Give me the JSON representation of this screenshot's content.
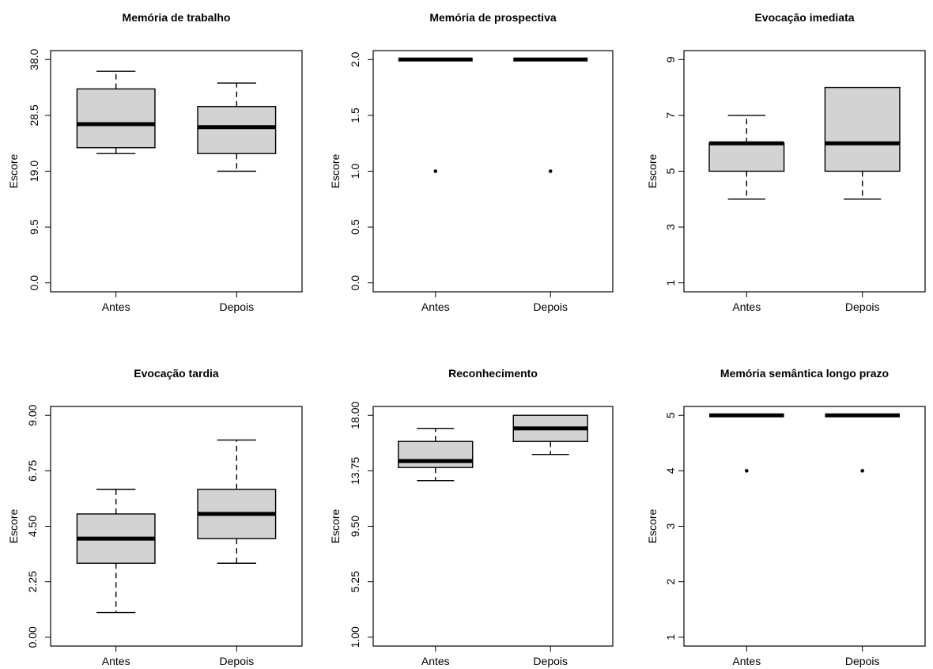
{
  "chart_data": [
    {
      "type": "box",
      "title": "Memória de trabalho",
      "ylabel": "Escore",
      "ylim": [
        0,
        38
      ],
      "yticks": [
        "0.0",
        "9.5",
        "19.0",
        "28.5",
        "38.0"
      ],
      "ytick_values": [
        0,
        9.5,
        19,
        28.5,
        38
      ],
      "categories": [
        "Antes",
        "Depois"
      ],
      "boxes": [
        {
          "min": 22,
          "q1": 23,
          "median": 27,
          "q3": 33,
          "max": 36,
          "outliers": []
        },
        {
          "min": 19,
          "q1": 22,
          "median": 26.5,
          "q3": 30,
          "max": 34,
          "outliers": []
        }
      ]
    },
    {
      "type": "box",
      "title": "Memória de prospectiva",
      "ylabel": "Escore",
      "ylim": [
        0,
        2
      ],
      "yticks": [
        "0.0",
        "0.5",
        "1.0",
        "1.5",
        "2.0"
      ],
      "ytick_values": [
        0,
        0.5,
        1,
        1.5,
        2
      ],
      "categories": [
        "Antes",
        "Depois"
      ],
      "boxes": [
        {
          "min": 2,
          "q1": 2,
          "median": 2,
          "q3": 2,
          "max": 2,
          "outliers": [
            1
          ]
        },
        {
          "min": 2,
          "q1": 2,
          "median": 2,
          "q3": 2,
          "max": 2,
          "outliers": [
            1
          ]
        }
      ]
    },
    {
      "type": "box",
      "title": "Evocação imediata",
      "ylabel": "Escore",
      "ylim": [
        1,
        9
      ],
      "yticks": [
        "1",
        "3",
        "5",
        "7",
        "9"
      ],
      "ytick_values": [
        1,
        3,
        5,
        7,
        9
      ],
      "categories": [
        "Antes",
        "Depois"
      ],
      "boxes": [
        {
          "min": 4,
          "q1": 5,
          "median": 6,
          "q3": 6,
          "max": 7,
          "outliers": []
        },
        {
          "min": 4,
          "q1": 5,
          "median": 6,
          "q3": 8,
          "max": 8,
          "outliers": []
        }
      ]
    },
    {
      "type": "box",
      "title": "Evocação tardia",
      "ylabel": "Escore",
      "ylim": [
        0,
        9
      ],
      "yticks": [
        "0.00",
        "2.25",
        "4.50",
        "6.75",
        "9.00"
      ],
      "ytick_values": [
        0,
        2.25,
        4.5,
        6.75,
        9
      ],
      "categories": [
        "Antes",
        "Depois"
      ],
      "boxes": [
        {
          "min": 1,
          "q1": 3,
          "median": 4,
          "q3": 5,
          "max": 6,
          "outliers": []
        },
        {
          "min": 3,
          "q1": 4,
          "median": 5,
          "q3": 6,
          "max": 8,
          "outliers": []
        }
      ]
    },
    {
      "type": "box",
      "title": "Reconhecimento",
      "ylabel": "Escore",
      "ylim": [
        1,
        18
      ],
      "yticks": [
        "1.00",
        "5.25",
        "9.50",
        "13.75",
        "18.00"
      ],
      "ytick_values": [
        1,
        5.25,
        9.5,
        13.75,
        18
      ],
      "categories": [
        "Antes",
        "Depois"
      ],
      "boxes": [
        {
          "min": 13,
          "q1": 14,
          "median": 14.5,
          "q3": 16,
          "max": 17,
          "outliers": []
        },
        {
          "min": 15,
          "q1": 16,
          "median": 17,
          "q3": 18,
          "max": 18,
          "outliers": []
        }
      ]
    },
    {
      "type": "box",
      "title": "Memória semântica longo prazo",
      "ylabel": "Escore",
      "ylim": [
        1,
        5
      ],
      "yticks": [
        "1",
        "2",
        "3",
        "4",
        "5"
      ],
      "ytick_values": [
        1,
        2,
        3,
        4,
        5
      ],
      "categories": [
        "Antes",
        "Depois"
      ],
      "boxes": [
        {
          "min": 5,
          "q1": 5,
          "median": 5,
          "q3": 5,
          "max": 5,
          "outliers": [
            4
          ]
        },
        {
          "min": 5,
          "q1": 5,
          "median": 5,
          "q3": 5,
          "max": 5,
          "outliers": [
            4
          ]
        }
      ]
    }
  ],
  "colors": {
    "box_fill": "#d3d3d3",
    "stroke": "#000000"
  }
}
